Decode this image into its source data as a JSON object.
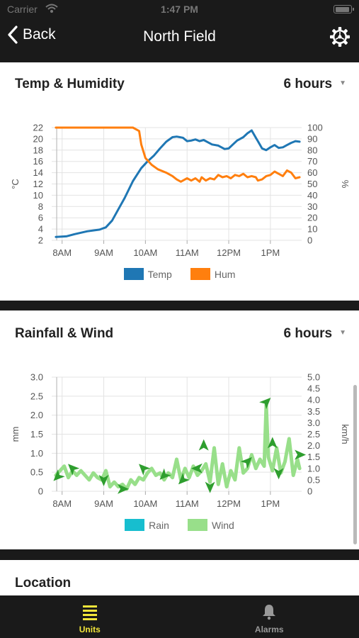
{
  "status_bar": {
    "carrier": "Carrier",
    "time": "1:47 PM"
  },
  "nav": {
    "back_label": "Back",
    "title": "North Field",
    "settings_icon": "gear-icon"
  },
  "tabs": [
    {
      "label": "Units",
      "icon": "list-icon",
      "active": true,
      "color": "#f2e53a"
    },
    {
      "label": "Alarms",
      "icon": "bell-icon",
      "active": false,
      "color": "#999999"
    }
  ],
  "cards": {
    "temp": {
      "title": "Temp & Humidity",
      "range": "6 hours"
    },
    "rain": {
      "title": "Rainfall & Wind",
      "range": "6 hours"
    },
    "location": {
      "title": "Location"
    }
  },
  "chart_data": [
    {
      "type": "line",
      "title": "Temp & Humidity",
      "x_ticks": [
        "8AM",
        "9AM",
        "10AM",
        "11AM",
        "12PM",
        "1PM"
      ],
      "xlim_hours": [
        7.75,
        13.75
      ],
      "ylabel": "°C",
      "ylim": [
        2,
        22
      ],
      "y_ticks": [
        2,
        4,
        6,
        8,
        10,
        12,
        14,
        16,
        18,
        20,
        22
      ],
      "y2label": "%",
      "y2lim": [
        0,
        100
      ],
      "y2_ticks": [
        0,
        10,
        20,
        30,
        40,
        50,
        60,
        70,
        80,
        90,
        100
      ],
      "legend": "bottom-center",
      "series": [
        {
          "name": "Temp",
          "color": "#1f77b4",
          "axis": "left",
          "x": [
            7.85,
            8.1,
            8.3,
            8.6,
            8.9,
            9.05,
            9.2,
            9.35,
            9.5,
            9.7,
            9.9,
            10.05,
            10.2,
            10.35,
            10.5,
            10.65,
            10.75,
            10.9,
            11.0,
            11.1,
            11.2,
            11.3,
            11.4,
            11.5,
            11.6,
            11.75,
            11.9,
            12.0,
            12.1,
            12.2,
            12.35,
            12.45,
            12.55,
            12.65,
            12.7,
            12.8,
            12.9,
            13.0,
            13.1,
            13.2,
            13.3,
            13.4,
            13.5,
            13.6,
            13.7
          ],
          "values": [
            2.6,
            2.7,
            3.1,
            3.6,
            3.9,
            4.3,
            5.5,
            7.5,
            9.5,
            12.5,
            14.8,
            16.0,
            17.0,
            18.3,
            19.5,
            20.3,
            20.4,
            20.2,
            19.6,
            19.7,
            19.9,
            19.6,
            19.8,
            19.4,
            19.0,
            18.8,
            18.2,
            18.3,
            19.0,
            19.7,
            20.3,
            21.0,
            21.5,
            20.2,
            19.6,
            18.3,
            18.0,
            18.5,
            18.9,
            18.4,
            18.5,
            18.9,
            19.3,
            19.6,
            19.5
          ]
        },
        {
          "name": "Hum",
          "color": "#ff7f0e",
          "axis": "right",
          "x": [
            7.85,
            8.2,
            8.6,
            9.0,
            9.4,
            9.7,
            9.85,
            9.9,
            10.0,
            10.15,
            10.3,
            10.5,
            10.65,
            10.75,
            10.85,
            11.0,
            11.1,
            11.2,
            11.3,
            11.35,
            11.45,
            11.55,
            11.65,
            11.75,
            11.85,
            11.95,
            12.05,
            12.15,
            12.25,
            12.35,
            12.45,
            12.55,
            12.65,
            12.7,
            12.8,
            12.9,
            13.0,
            13.1,
            13.2,
            13.3,
            13.4,
            13.5,
            13.6,
            13.7
          ],
          "values": [
            100,
            100,
            100,
            100,
            100,
            100,
            97,
            85,
            73,
            67,
            63,
            60,
            57,
            54,
            52,
            55,
            53,
            55,
            52,
            56,
            53,
            55,
            54,
            58,
            56,
            57,
            55,
            58,
            57,
            59,
            56,
            57,
            56,
            53,
            54,
            57,
            58,
            61,
            59,
            57,
            62,
            60,
            55,
            56
          ]
        }
      ]
    },
    {
      "type": "line",
      "title": "Rainfall & Wind",
      "x_ticks": [
        "8AM",
        "9AM",
        "10AM",
        "11AM",
        "12PM",
        "1PM"
      ],
      "xlim_hours": [
        7.75,
        13.75
      ],
      "ylabel": "mm",
      "ylim": [
        0,
        3.0
      ],
      "y_ticks": [
        "0",
        "0.5",
        "1.0",
        "1.5",
        "2.0",
        "2.5",
        "3.0"
      ],
      "y2label": "km/h",
      "y2lim": [
        0,
        5.0
      ],
      "y2_ticks": [
        "0",
        "0.5",
        "1.0",
        "1.5",
        "2.0",
        "2.5",
        "3.0",
        "3.5",
        "4.0",
        "4.5",
        "5.0"
      ],
      "legend": "bottom-center",
      "series": [
        {
          "name": "Rain",
          "color": "#17becf",
          "axis": "left",
          "x": [],
          "values": []
        },
        {
          "name": "Wind",
          "color": "#98df8a",
          "axis": "right",
          "x": [
            7.85,
            7.95,
            8.05,
            8.15,
            8.25,
            8.35,
            8.45,
            8.55,
            8.65,
            8.75,
            8.85,
            8.95,
            9.05,
            9.15,
            9.25,
            9.35,
            9.45,
            9.55,
            9.65,
            9.75,
            9.85,
            9.95,
            10.05,
            10.15,
            10.25,
            10.35,
            10.45,
            10.55,
            10.65,
            10.75,
            10.85,
            10.95,
            11.05,
            11.15,
            11.25,
            11.35,
            11.45,
            11.55,
            11.65,
            11.75,
            11.85,
            11.95,
            12.05,
            12.15,
            12.25,
            12.35,
            12.45,
            12.55,
            12.65,
            12.75,
            12.85,
            12.9,
            12.95,
            13.05,
            13.15,
            13.25,
            13.35,
            13.45,
            13.55,
            13.65,
            13.7
          ],
          "values": [
            0.7,
            0.9,
            1.1,
            0.6,
            0.9,
            0.7,
            0.9,
            0.7,
            0.5,
            0.8,
            0.6,
            0.5,
            0.9,
            0.2,
            0.4,
            0.2,
            0.3,
            0.1,
            0.5,
            0.3,
            0.6,
            0.5,
            0.8,
            1.0,
            0.7,
            0.8,
            0.5,
            0.8,
            0.6,
            1.4,
            0.5,
            1.0,
            0.6,
            1.1,
            0.7,
            0.9,
            1.2,
            0.4,
            1.9,
            0.3,
            1.2,
            0.2,
            0.9,
            0.5,
            1.9,
            0.8,
            1.0,
            1.6,
            1.0,
            1.4,
            1.1,
            3.8,
            1.5,
            0.9,
            1.9,
            0.8,
            1.3,
            2.3,
            0.7,
            1.4,
            1.0
          ]
        }
      ],
      "wind_arrows": [
        {
          "x": 7.9,
          "v": 0.65,
          "dir_deg": 225
        },
        {
          "x": 8.25,
          "v": 1.0,
          "dir_deg": 315
        },
        {
          "x": 9.0,
          "v": 0.5,
          "dir_deg": 180
        },
        {
          "x": 9.45,
          "v": 0.1,
          "dir_deg": 90
        },
        {
          "x": 9.95,
          "v": 1.0,
          "dir_deg": 315
        },
        {
          "x": 10.45,
          "v": 0.7,
          "dir_deg": 225
        },
        {
          "x": 10.9,
          "v": 0.5,
          "dir_deg": 225
        },
        {
          "x": 11.25,
          "v": 1.0,
          "dir_deg": 270
        },
        {
          "x": 11.4,
          "v": 2.0,
          "dir_deg": 0
        },
        {
          "x": 11.55,
          "v": 0.2,
          "dir_deg": 180
        },
        {
          "x": 12.45,
          "v": 1.3,
          "dir_deg": 45
        },
        {
          "x": 12.9,
          "v": 3.9,
          "dir_deg": 45
        },
        {
          "x": 13.05,
          "v": 2.1,
          "dir_deg": 0
        },
        {
          "x": 13.2,
          "v": 0.8,
          "dir_deg": 180
        },
        {
          "x": 13.7,
          "v": 1.6,
          "dir_deg": 90
        }
      ]
    }
  ]
}
